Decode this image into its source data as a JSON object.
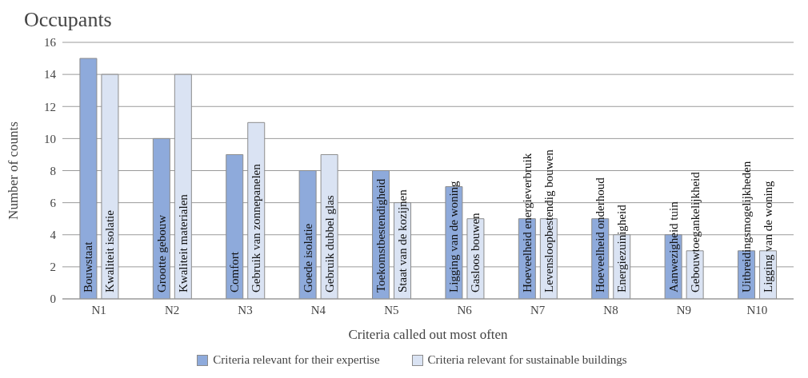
{
  "chart_data": {
    "type": "bar",
    "title": "Occupants",
    "xlabel": "Criteria called out most often",
    "ylabel": "Number of counts",
    "categories": [
      "N1",
      "N2",
      "N3",
      "N4",
      "N5",
      "N6",
      "N7",
      "N8",
      "N9",
      "N10"
    ],
    "series": [
      {
        "name": "Criteria relevant for their expertise",
        "color": "#8eaadb",
        "values": [
          15,
          10,
          9,
          8,
          8,
          7,
          5,
          5,
          4,
          3
        ]
      },
      {
        "name": "Criteria relevant for sustainable buildings",
        "color": "#dae3f3",
        "values": [
          14,
          14,
          11,
          9,
          6,
          5,
          5,
          4,
          3,
          3
        ]
      }
    ],
    "ylim": [
      0,
      16
    ],
    "yticks": [
      0,
      2,
      4,
      6,
      8,
      10,
      12,
      14,
      16
    ],
    "grid": "y",
    "legend": "bottom",
    "annotations": [
      {
        "text": "Bouwstaat",
        "x": "N1",
        "y": 0
      },
      {
        "text": "Kwaliteit isolatie",
        "x": "N1",
        "y": 0
      },
      {
        "text": "Grootte gebouw",
        "x": "N2",
        "y": 0
      },
      {
        "text": "Kwaliteit materialen",
        "x": "N2",
        "y": 0
      },
      {
        "text": "Comfort",
        "x": "N3",
        "y": 0
      },
      {
        "text": "Gebruik van zonnepanelen",
        "x": "N3",
        "y": 0
      },
      {
        "text": "Goede isolatie",
        "x": "N4",
        "y": 0
      },
      {
        "text": "Gebruik dubbel glas",
        "x": "N4",
        "y": 0
      },
      {
        "text": "Toekomstbestendigheid",
        "x": "N5",
        "y": 0
      },
      {
        "text": "Staat van de kozijnen",
        "x": "N5",
        "y": 0
      },
      {
        "text": "Ligging van de woning",
        "x": "N6",
        "y": 0
      },
      {
        "text": "Gasloos bouwen",
        "x": "N6",
        "y": 0
      },
      {
        "text": "Hoeveelheid energieverbruik",
        "x": "N7",
        "y": 0
      },
      {
        "text": "Levensloopbestendig bouwen",
        "x": "N7",
        "y": 0
      },
      {
        "text": "Hoeveelheid onderhoud",
        "x": "N8",
        "y": 0
      },
      {
        "text": "Energiezuinigheid",
        "x": "N8",
        "y": 0
      },
      {
        "text": "Aanwezigheid tuin",
        "x": "N9",
        "y": 0
      },
      {
        "text": "Gebouwtoegankelijkheid",
        "x": "N9",
        "y": 0
      },
      {
        "text": "Uitbreidingsmogelijkheden",
        "x": "N10",
        "y": 0
      },
      {
        "text": "Ligging van de woning",
        "x": "N10",
        "y": 0
      }
    ]
  }
}
